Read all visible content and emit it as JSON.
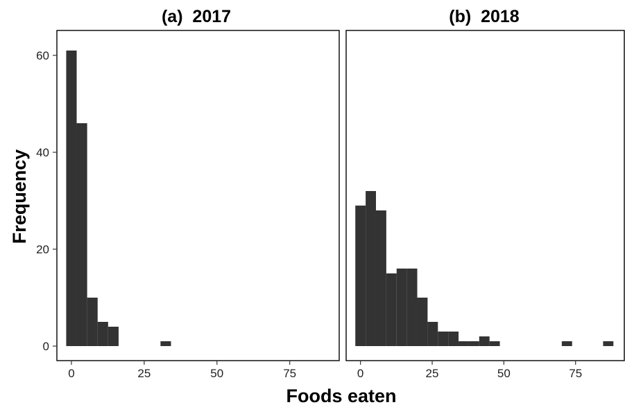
{
  "chart_data": {
    "type": "bar",
    "xlabel": "Foods eaten",
    "ylabel": "Frequency",
    "bin_width": 3.6,
    "xlim": [
      -5,
      92
    ],
    "ylim": [
      -3,
      65
    ],
    "x_ticks": [
      0,
      25,
      50,
      75
    ],
    "y_ticks": [
      0,
      20,
      40,
      60
    ],
    "grid": false,
    "bar_color": "#333333",
    "panels": [
      {
        "title": "(a)  2017",
        "bins": [
          {
            "x_start": -1.8,
            "count": 61
          },
          {
            "x_start": 1.8,
            "count": 46
          },
          {
            "x_start": 5.4,
            "count": 10
          },
          {
            "x_start": 9.0,
            "count": 5
          },
          {
            "x_start": 12.6,
            "count": 4
          },
          {
            "x_start": 30.6,
            "count": 1
          }
        ]
      },
      {
        "title": "(b)  2018",
        "bins": [
          {
            "x_start": -1.8,
            "count": 29
          },
          {
            "x_start": 1.8,
            "count": 32
          },
          {
            "x_start": 5.4,
            "count": 28
          },
          {
            "x_start": 9.0,
            "count": 15
          },
          {
            "x_start": 12.6,
            "count": 16
          },
          {
            "x_start": 16.2,
            "count": 16
          },
          {
            "x_start": 19.8,
            "count": 10
          },
          {
            "x_start": 23.4,
            "count": 5
          },
          {
            "x_start": 27.0,
            "count": 3
          },
          {
            "x_start": 30.6,
            "count": 3
          },
          {
            "x_start": 34.2,
            "count": 1
          },
          {
            "x_start": 37.8,
            "count": 1
          },
          {
            "x_start": 41.4,
            "count": 2
          },
          {
            "x_start": 45.0,
            "count": 1
          },
          {
            "x_start": 70.2,
            "count": 1
          },
          {
            "x_start": 84.6,
            "count": 1
          }
        ]
      }
    ]
  }
}
